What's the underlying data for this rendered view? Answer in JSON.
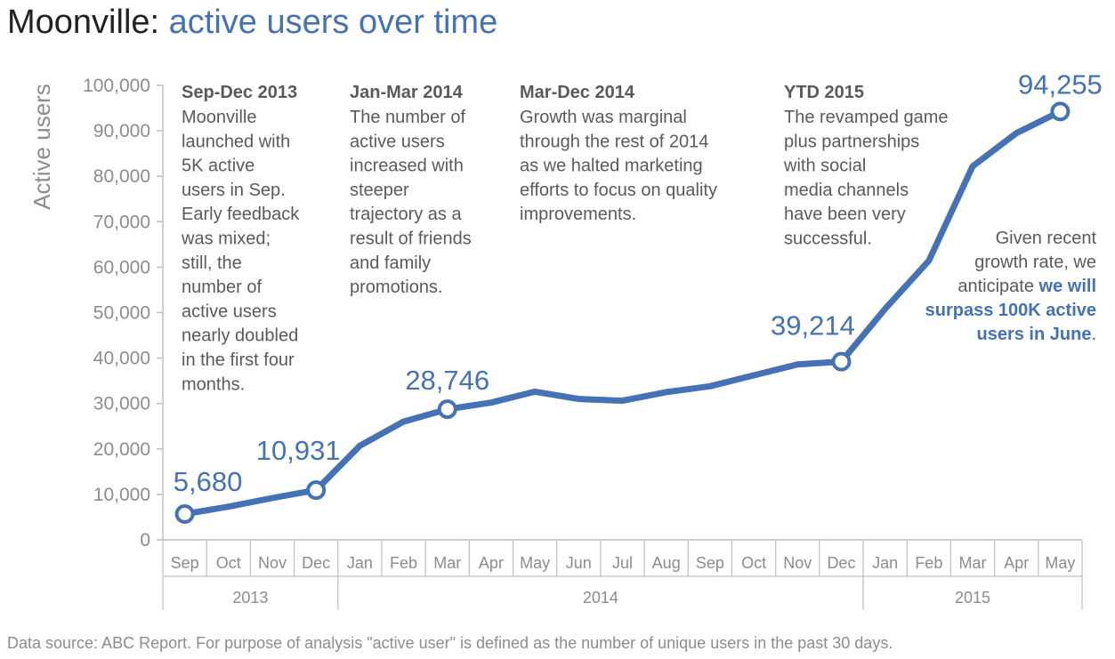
{
  "title": {
    "main": "Moonville: ",
    "accent": "active users over time"
  },
  "footnote": "Data source: ABC Report. For purpose of analysis \"active user\" is defined as the number of unique users in the past 30 days.",
  "colors": {
    "accent": "#4472b4",
    "text": "#5a5a5a",
    "axis": "#8c8c8c"
  },
  "chart_data": {
    "type": "line",
    "ylabel": "Active users",
    "ylim": [
      0,
      100000
    ],
    "yticks": [
      "0",
      "10,000",
      "20,000",
      "30,000",
      "40,000",
      "50,000",
      "60,000",
      "70,000",
      "80,000",
      "90,000",
      "100,000"
    ],
    "ytick_values": [
      0,
      10000,
      20000,
      30000,
      40000,
      50000,
      60000,
      70000,
      80000,
      90000,
      100000
    ],
    "categories": [
      "Sep",
      "Oct",
      "Nov",
      "Dec",
      "Jan",
      "Feb",
      "Mar",
      "Apr",
      "May",
      "Jun",
      "Jul",
      "Aug",
      "Sep",
      "Oct",
      "Nov",
      "Dec",
      "Jan",
      "Feb",
      "Mar",
      "Apr",
      "May"
    ],
    "years": [
      {
        "label": "2013",
        "start": 0,
        "end": 3
      },
      {
        "label": "2014",
        "start": 4,
        "end": 15
      },
      {
        "label": "2015",
        "start": 16,
        "end": 20
      }
    ],
    "grid": false,
    "series": [
      {
        "values": [
          5680,
          7300,
          9200,
          10931,
          20700,
          26000,
          28746,
          30200,
          32600,
          31000,
          30600,
          32500,
          33800,
          36200,
          38600,
          39214,
          50800,
          61400,
          82200,
          89500,
          94255
        ]
      }
    ],
    "labeled_points": [
      {
        "index": 0,
        "label": "5,680"
      },
      {
        "index": 3,
        "label": "10,931"
      },
      {
        "index": 6,
        "label": "28,746"
      },
      {
        "index": 15,
        "label": "39,214"
      },
      {
        "index": 20,
        "label": "94,255"
      }
    ],
    "annotations": [
      {
        "heading": "Sep-Dec 2013",
        "lines": [
          "Moonville",
          "launched with",
          "5K active",
          "users in Sep.",
          "Early feedback",
          "was mixed;",
          "still, the",
          "number of",
          "active users",
          "nearly doubled",
          "in the first four",
          "months."
        ]
      },
      {
        "heading": "Jan-Mar 2014",
        "lines": [
          "The number of",
          "active users",
          "increased with",
          "steeper",
          "trajectory as a",
          "result of friends",
          "and family",
          "promotions."
        ]
      },
      {
        "heading": "Mar-Dec 2014",
        "lines": [
          "Growth was marginal",
          "through the rest of 2014",
          "as we halted marketing",
          "efforts to focus on quality",
          "improvements."
        ]
      },
      {
        "heading": "YTD 2015",
        "lines": [
          "The revamped game",
          "plus partnerships",
          "with social",
          "media channels",
          "have been very",
          "successful."
        ]
      }
    ],
    "forecast_note": {
      "line1": "Given recent",
      "line2": "growth rate, we",
      "line3_plain": "anticipate ",
      "line3_strong": "we will",
      "line4_strong": "surpass 100K active",
      "line5_strong": "users in June",
      "line5_tail": "."
    }
  }
}
